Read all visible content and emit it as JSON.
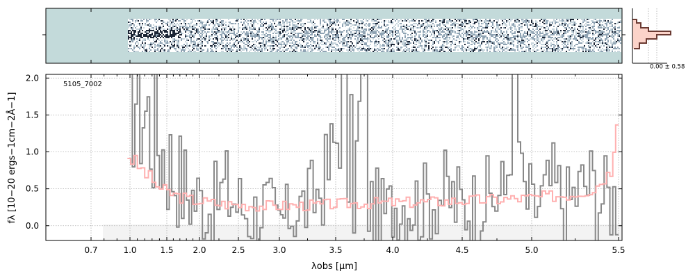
{
  "chart_data": {
    "type": "line",
    "object_id": "5105_7002",
    "xlabel": "λobs [μm]",
    "ylabel": "fλ [10−20 ergs−1cm−2Å−1]",
    "xticks": [
      "0.7",
      "1.0",
      "1.5",
      "2.0",
      "2.5",
      "3.0",
      "3.5",
      "4.0",
      "4.5",
      "5.0",
      "5.5"
    ],
    "yticks": [
      "0.0",
      "0.5",
      "1.0",
      "1.5",
      "2.0"
    ],
    "ylim": [
      -0.2,
      2.05
    ],
    "grid": true,
    "noise_label": "0.00 ± 0.58",
    "colors": {
      "spectrum": "#888888",
      "model": "#ffb0b0",
      "twod_background": "#c3dada",
      "twod_dark": "#1c2535",
      "profile_line": "#6b3a32",
      "profile_fill": "#fbd3c9",
      "grid": "#b0b0b0"
    },
    "series": [
      {
        "role": "observed spectrum (step)",
        "x": [
          0.98,
          1.1,
          1.2,
          1.3,
          1.4,
          1.5,
          1.65,
          1.8,
          2.0,
          2.15,
          2.3,
          2.5,
          2.65,
          2.8,
          2.95,
          3.1,
          3.25,
          3.4,
          3.55,
          3.65,
          3.72,
          3.78,
          3.9,
          4.05,
          4.2,
          4.35,
          4.5,
          4.65,
          4.8,
          4.88,
          4.92,
          5.0,
          5.1,
          5.2,
          5.3,
          5.4,
          5.5
        ],
        "y": [
          2.05,
          1.9,
          1.55,
          1.3,
          1.1,
          0.9,
          0.7,
          0.45,
          0.35,
          0.25,
          0.5,
          0.3,
          0.15,
          0.3,
          0.0,
          0.2,
          0.3,
          0.6,
          1.55,
          0.4,
          2.05,
          0.3,
          0.15,
          0.35,
          0.3,
          0.45,
          0.25,
          0.35,
          0.45,
          2.05,
          0.5,
          0.2,
          0.55,
          0.3,
          0.6,
          0.4,
          0.35
        ]
      },
      {
        "role": "model (step)",
        "x": [
          0.98,
          1.1,
          1.2,
          1.3,
          1.4,
          1.5,
          1.65,
          1.8,
          2.0,
          2.2,
          2.5,
          2.8,
          3.0,
          3.3,
          3.6,
          3.9,
          4.2,
          4.5,
          4.8,
          5.0,
          5.2,
          5.35,
          5.45,
          5.5
        ],
        "y": [
          0.95,
          0.8,
          0.7,
          0.6,
          0.5,
          0.45,
          0.4,
          0.36,
          0.33,
          0.3,
          0.28,
          0.27,
          0.27,
          0.28,
          0.3,
          0.31,
          0.32,
          0.34,
          0.36,
          0.38,
          0.42,
          0.5,
          0.75,
          1.8
        ]
      }
    ]
  }
}
